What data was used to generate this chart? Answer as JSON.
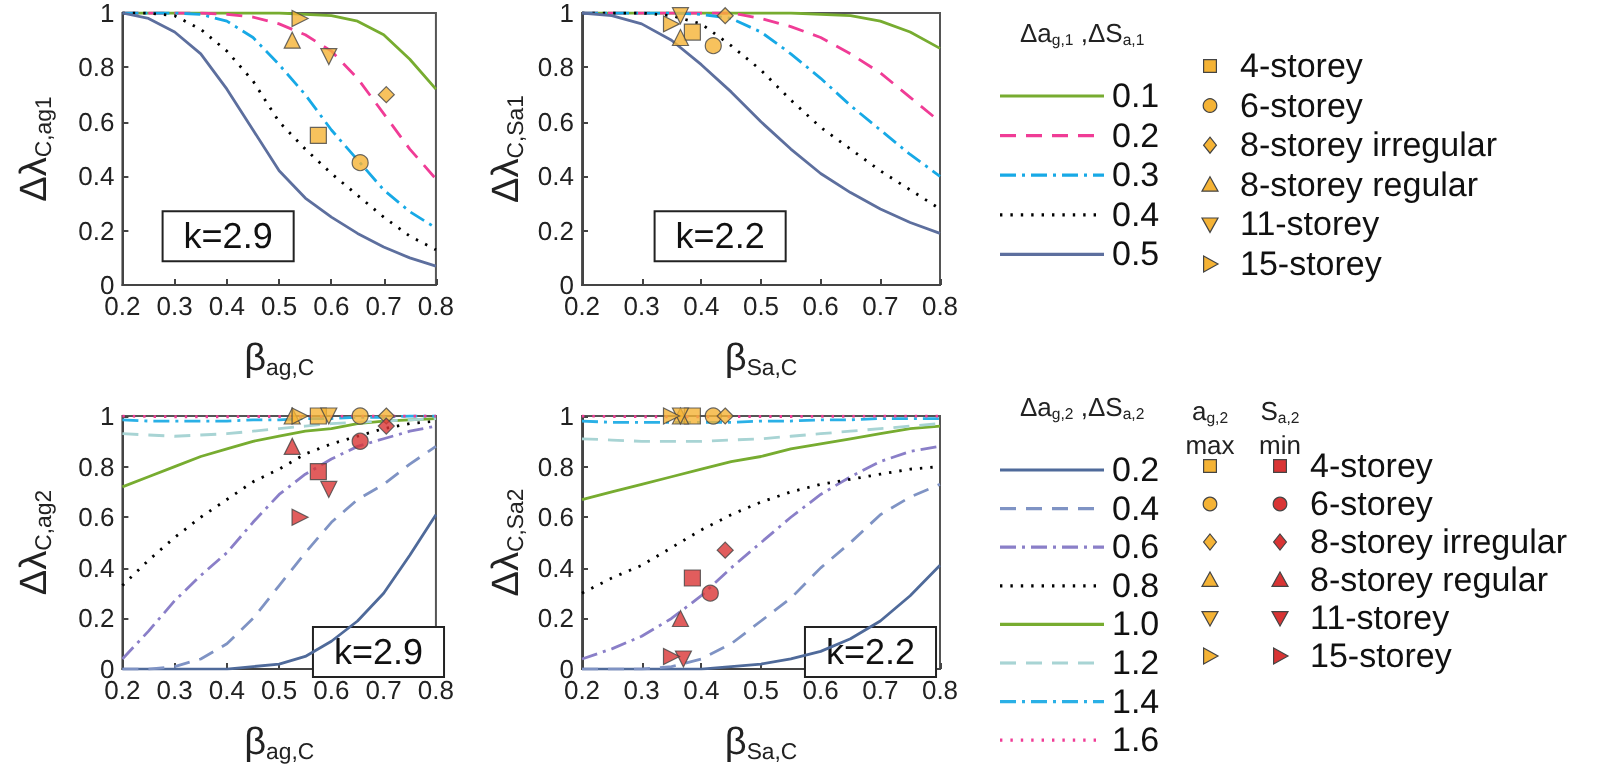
{
  "chart_data": [
    {
      "type": "line",
      "xlabel": "β$_{ag,C}$",
      "ylabel": "Δλ$_{C,ag1}$",
      "xlim": [
        0.2,
        0.8
      ],
      "ylim": [
        0,
        1
      ],
      "xticks": [
        0.2,
        0.3,
        0.4,
        0.5,
        0.6,
        0.7,
        0.8
      ],
      "yticks": [
        0,
        0.2,
        0.4,
        0.6,
        0.8,
        1
      ],
      "marker": "none",
      "annotations": [
        "k=2.9"
      ],
      "x": [
        0.2,
        0.25,
        0.3,
        0.35,
        0.4,
        0.45,
        0.5,
        0.55,
        0.6,
        0.65,
        0.7,
        0.75,
        0.8
      ],
      "series": [
        {
          "color": "#77ac30",
          "line_style": "solid",
          "values": [
            1,
            1,
            1,
            1,
            1,
            1,
            1,
            0.995,
            0.99,
            0.97,
            0.92,
            0.83,
            0.72
          ]
        },
        {
          "color": "#f03c96",
          "line_style": "dashed",
          "values": [
            1,
            1,
            1,
            1,
            0.995,
            0.985,
            0.96,
            0.92,
            0.86,
            0.76,
            0.63,
            0.5,
            0.39
          ]
        },
        {
          "color": "#17a9e6",
          "line_style": "dashdot",
          "values": [
            1,
            1,
            1,
            0.995,
            0.97,
            0.91,
            0.81,
            0.7,
            0.57,
            0.46,
            0.35,
            0.27,
            0.21
          ]
        },
        {
          "color": "#000000",
          "line_style": "dotted",
          "values": [
            1,
            1,
            0.99,
            0.94,
            0.86,
            0.75,
            0.6,
            0.5,
            0.41,
            0.33,
            0.25,
            0.18,
            0.13
          ]
        },
        {
          "color": "#5d6f9e",
          "line_style": "solid",
          "values": [
            1,
            0.98,
            0.93,
            0.85,
            0.72,
            0.57,
            0.42,
            0.32,
            0.25,
            0.19,
            0.14,
            0.1,
            0.07
          ]
        },
        {
          "type": "scatter",
          "marker": "square",
          "x": [
            0.575
          ],
          "values": [
            0.55
          ],
          "color": "#f5b335"
        },
        {
          "type": "scatter",
          "marker": "circle",
          "x": [
            0.655
          ],
          "values": [
            0.45
          ],
          "color": "#f5b335"
        },
        {
          "type": "scatter",
          "marker": "diamond",
          "x": [
            0.705
          ],
          "values": [
            0.7
          ],
          "color": "#f5b335"
        },
        {
          "type": "scatter",
          "marker": "triangle",
          "x": [
            0.525
          ],
          "values": [
            0.9
          ],
          "color": "#f5b335"
        },
        {
          "type": "scatter",
          "marker": "triangle-down",
          "x": [
            0.595
          ],
          "values": [
            0.84
          ],
          "color": "#f5b335"
        },
        {
          "type": "scatter",
          "marker": "triangle-right",
          "x": [
            0.54
          ],
          "values": [
            0.98
          ],
          "color": "#f5b335"
        }
      ]
    },
    {
      "type": "line",
      "xlabel": "β$_{Sa,C}$",
      "ylabel": "Δλ$_{C,Sa1}$",
      "xlim": [
        0.2,
        0.8
      ],
      "ylim": [
        0,
        1
      ],
      "xticks": [
        0.2,
        0.3,
        0.4,
        0.5,
        0.6,
        0.7,
        0.8
      ],
      "yticks": [
        0,
        0.2,
        0.4,
        0.6,
        0.8,
        1
      ],
      "marker": "none",
      "annotations": [
        "k=2.2"
      ],
      "legend": "right",
      "legend_title": "Δa$_{g,1}$ ,ΔS$_{a,1}$",
      "x": [
        0.2,
        0.25,
        0.3,
        0.35,
        0.4,
        0.45,
        0.5,
        0.55,
        0.6,
        0.65,
        0.7,
        0.75,
        0.8
      ],
      "series": [
        {
          "name": "0.1",
          "color": "#77ac30",
          "line_style": "solid",
          "values": [
            1,
            1,
            1,
            1,
            1,
            1,
            1,
            1,
            0.995,
            0.99,
            0.97,
            0.93,
            0.87
          ]
        },
        {
          "name": "0.2",
          "color": "#f03c96",
          "line_style": "dashed",
          "values": [
            1,
            1,
            1,
            1,
            1,
            1,
            0.98,
            0.95,
            0.91,
            0.85,
            0.78,
            0.69,
            0.6
          ]
        },
        {
          "name": "0.3",
          "color": "#17a9e6",
          "line_style": "dashdot",
          "values": [
            1,
            1,
            1,
            1,
            0.995,
            0.98,
            0.93,
            0.85,
            0.76,
            0.66,
            0.57,
            0.48,
            0.4
          ]
        },
        {
          "name": "0.4",
          "color": "#000000",
          "line_style": "dotted",
          "values": [
            1,
            1,
            1,
            0.99,
            0.96,
            0.88,
            0.79,
            0.68,
            0.58,
            0.5,
            0.42,
            0.35,
            0.28
          ]
        },
        {
          "name": "0.5",
          "color": "#5d6f9e",
          "line_style": "solid",
          "values": [
            1,
            0.99,
            0.96,
            0.9,
            0.81,
            0.71,
            0.6,
            0.5,
            0.41,
            0.34,
            0.28,
            0.23,
            0.19
          ]
        },
        {
          "type": "scatter",
          "name": "4-storey",
          "marker": "square",
          "x": [
            0.385
          ],
          "values": [
            0.93
          ],
          "color": "#f5b335"
        },
        {
          "type": "scatter",
          "name": "6-storey",
          "marker": "circle",
          "x": [
            0.42
          ],
          "values": [
            0.88
          ],
          "color": "#f5b335"
        },
        {
          "type": "scatter",
          "name": "8-storey irregular",
          "marker": "diamond",
          "x": [
            0.44
          ],
          "values": [
            0.99
          ],
          "color": "#f5b335"
        },
        {
          "type": "scatter",
          "name": "8-storey regular",
          "marker": "triangle",
          "x": [
            0.365
          ],
          "values": [
            0.91
          ],
          "color": "#f5b335"
        },
        {
          "type": "scatter",
          "name": "11-storey",
          "marker": "triangle-down",
          "x": [
            0.365
          ],
          "values": [
            0.99
          ],
          "color": "#f5b335"
        },
        {
          "type": "scatter",
          "name": "15-storey",
          "marker": "triangle-right",
          "x": [
            0.35
          ],
          "values": [
            0.96
          ],
          "color": "#f5b335"
        }
      ]
    },
    {
      "type": "line",
      "xlabel": "β$_{ag,C}$",
      "ylabel": "Δλ$_{C,ag2}$",
      "xlim": [
        0.2,
        0.8
      ],
      "ylim": [
        0,
        1
      ],
      "xticks": [
        0.2,
        0.3,
        0.4,
        0.5,
        0.6,
        0.7,
        0.8
      ],
      "yticks": [
        0,
        0.2,
        0.4,
        0.6,
        0.8,
        1
      ],
      "marker": "none",
      "annotations": [
        "k=2.9"
      ],
      "x": [
        0.2,
        0.25,
        0.3,
        0.35,
        0.4,
        0.45,
        0.5,
        0.55,
        0.6,
        0.65,
        0.7,
        0.75,
        0.8
      ],
      "series": [
        {
          "color": "#4f6a9a",
          "line_style": "solid",
          "values": [
            0,
            0,
            0,
            0,
            0,
            0.01,
            0.02,
            0.05,
            0.11,
            0.19,
            0.3,
            0.45,
            0.61
          ]
        },
        {
          "color": "#7f93c4",
          "line_style": "dashed",
          "values": [
            0,
            0,
            0.01,
            0.04,
            0.1,
            0.2,
            0.33,
            0.46,
            0.58,
            0.67,
            0.73,
            0.81,
            0.88
          ]
        },
        {
          "color": "#8a7fc8",
          "line_style": "dashdot",
          "values": [
            0.04,
            0.15,
            0.27,
            0.37,
            0.46,
            0.58,
            0.69,
            0.77,
            0.83,
            0.88,
            0.91,
            0.94,
            0.96
          ]
        },
        {
          "color": "#000000",
          "line_style": "dotted",
          "values": [
            0.33,
            0.43,
            0.52,
            0.6,
            0.67,
            0.74,
            0.79,
            0.85,
            0.89,
            0.92,
            0.95,
            0.97,
            0.98
          ]
        },
        {
          "color": "#77ac30",
          "line_style": "solid",
          "values": [
            0.72,
            0.76,
            0.8,
            0.84,
            0.87,
            0.9,
            0.92,
            0.94,
            0.95,
            0.97,
            0.98,
            0.985,
            0.99
          ]
        },
        {
          "color": "#a8d4d4",
          "line_style": "dashed",
          "values": [
            0.93,
            0.925,
            0.92,
            0.925,
            0.93,
            0.94,
            0.95,
            0.96,
            0.97,
            0.975,
            0.98,
            0.985,
            0.99
          ]
        },
        {
          "color": "#2ab0e6",
          "line_style": "dashdot",
          "values": [
            0.985,
            0.98,
            0.98,
            0.98,
            0.98,
            0.985,
            0.985,
            0.99,
            0.99,
            0.995,
            0.995,
            1,
            1
          ]
        },
        {
          "color": "#f03c96",
          "line_style": "dotted",
          "values": [
            1,
            0.998,
            0.997,
            0.997,
            0.997,
            0.998,
            0.998,
            0.999,
            0.999,
            1,
            1,
            1,
            1
          ]
        },
        {
          "type": "scatter",
          "marker": "square",
          "x": [
            0.575,
            0.575
          ],
          "values": [
            1,
            0.78
          ],
          "colors": [
            "#f5b335",
            "#d93434"
          ]
        },
        {
          "type": "scatter",
          "marker": "circle",
          "x": [
            0.655,
            0.655
          ],
          "values": [
            1,
            0.9
          ],
          "colors": [
            "#f5b335",
            "#d93434"
          ]
        },
        {
          "type": "scatter",
          "marker": "diamond",
          "x": [
            0.705,
            0.705
          ],
          "values": [
            1,
            0.96
          ],
          "colors": [
            "#f5b335",
            "#d93434"
          ]
        },
        {
          "type": "scatter",
          "marker": "triangle",
          "x": [
            0.525,
            0.525
          ],
          "values": [
            1,
            0.88
          ],
          "colors": [
            "#f5b335",
            "#d93434"
          ]
        },
        {
          "type": "scatter",
          "marker": "triangle-down",
          "x": [
            0.595,
            0.595
          ],
          "values": [
            1,
            0.71
          ],
          "colors": [
            "#f5b335",
            "#d93434"
          ]
        },
        {
          "type": "scatter",
          "marker": "triangle-right",
          "x": [
            0.54,
            0.54
          ],
          "values": [
            1,
            0.6
          ],
          "colors": [
            "#f5b335",
            "#d93434"
          ]
        }
      ]
    },
    {
      "type": "line",
      "xlabel": "β$_{Sa,C}$",
      "ylabel": "Δλ$_{C,Sa2}$",
      "xlim": [
        0.2,
        0.8
      ],
      "ylim": [
        0,
        1
      ],
      "xticks": [
        0.2,
        0.3,
        0.4,
        0.5,
        0.6,
        0.7,
        0.8
      ],
      "yticks": [
        0,
        0.2,
        0.4,
        0.6,
        0.8,
        1
      ],
      "marker": "none",
      "annotations": [
        "k=2.2",
        "a$_{g,2}$\nmax",
        "S$_{a,2}$\nmin"
      ],
      "legend": "right",
      "legend_title": "Δa$_{g,2}$ ,ΔS$_{a,2}$",
      "x": [
        0.2,
        0.25,
        0.3,
        0.35,
        0.4,
        0.45,
        0.5,
        0.55,
        0.6,
        0.65,
        0.7,
        0.75,
        0.8
      ],
      "series": [
        {
          "name": "0.2",
          "color": "#4f6a9a",
          "line_style": "solid",
          "values": [
            0,
            0,
            0,
            0,
            0,
            0.01,
            0.02,
            0.04,
            0.07,
            0.12,
            0.19,
            0.29,
            0.41
          ]
        },
        {
          "name": "0.4",
          "color": "#7f93c4",
          "line_style": "dashed",
          "values": [
            0,
            0,
            0,
            0.01,
            0.04,
            0.1,
            0.19,
            0.28,
            0.4,
            0.5,
            0.61,
            0.68,
            0.73
          ]
        },
        {
          "name": "0.6",
          "color": "#8a7fc8",
          "line_style": "dashdot",
          "values": [
            0.04,
            0.08,
            0.13,
            0.2,
            0.29,
            0.4,
            0.5,
            0.6,
            0.69,
            0.76,
            0.82,
            0.86,
            0.88
          ]
        },
        {
          "name": "0.8",
          "color": "#000000",
          "line_style": "dotted",
          "values": [
            0.3,
            0.36,
            0.41,
            0.48,
            0.55,
            0.61,
            0.66,
            0.7,
            0.73,
            0.75,
            0.77,
            0.79,
            0.8
          ]
        },
        {
          "name": "1.0",
          "color": "#77ac30",
          "line_style": "solid",
          "values": [
            0.67,
            0.7,
            0.73,
            0.76,
            0.79,
            0.82,
            0.84,
            0.87,
            0.89,
            0.91,
            0.93,
            0.95,
            0.96
          ]
        },
        {
          "name": "1.2",
          "color": "#a8d4d4",
          "line_style": "dashed",
          "values": [
            0.91,
            0.905,
            0.9,
            0.9,
            0.9,
            0.905,
            0.91,
            0.92,
            0.93,
            0.94,
            0.95,
            0.96,
            0.97
          ]
        },
        {
          "name": "1.4",
          "color": "#2ab0e6",
          "line_style": "dashdot",
          "values": [
            0.98,
            0.975,
            0.975,
            0.975,
            0.975,
            0.975,
            0.98,
            0.98,
            0.985,
            0.985,
            0.99,
            0.99,
            0.99
          ]
        },
        {
          "name": "1.6",
          "color": "#f03c96",
          "line_style": "dotted",
          "values": [
            1,
            0.998,
            0.997,
            0.997,
            0.997,
            0.997,
            0.998,
            0.998,
            0.999,
            0.999,
            1,
            1,
            1
          ]
        },
        {
          "type": "scatter",
          "name": "4-storey",
          "marker": "square",
          "x": [
            0.385,
            0.385
          ],
          "values": [
            1,
            0.36
          ],
          "colors": [
            "#f5b335",
            "#d93434"
          ]
        },
        {
          "type": "scatter",
          "name": "6-storey",
          "marker": "circle",
          "x": [
            0.42,
            0.415
          ],
          "values": [
            1,
            0.3
          ],
          "colors": [
            "#f5b335",
            "#d93434"
          ]
        },
        {
          "type": "scatter",
          "name": "8-storey irregular",
          "marker": "diamond",
          "x": [
            0.44,
            0.44
          ],
          "values": [
            1,
            0.47
          ],
          "colors": [
            "#f5b335",
            "#d93434"
          ]
        },
        {
          "type": "scatter",
          "name": "8-storey regular",
          "marker": "triangle",
          "x": [
            0.365,
            0.365
          ],
          "values": [
            1,
            0.2
          ],
          "colors": [
            "#f5b335",
            "#d93434"
          ]
        },
        {
          "type": "scatter",
          "name": "11-storey",
          "marker": "triangle-down",
          "x": [
            0.365,
            0.37
          ],
          "values": [
            1,
            0.04
          ],
          "colors": [
            "#f5b335",
            "#d93434"
          ]
        },
        {
          "type": "scatter",
          "name": "15-storey",
          "marker": "triangle-right",
          "x": [
            0.35,
            0.35
          ],
          "values": [
            1,
            0.05
          ],
          "colors": [
            "#f5b335",
            "#d93434"
          ]
        }
      ]
    }
  ]
}
